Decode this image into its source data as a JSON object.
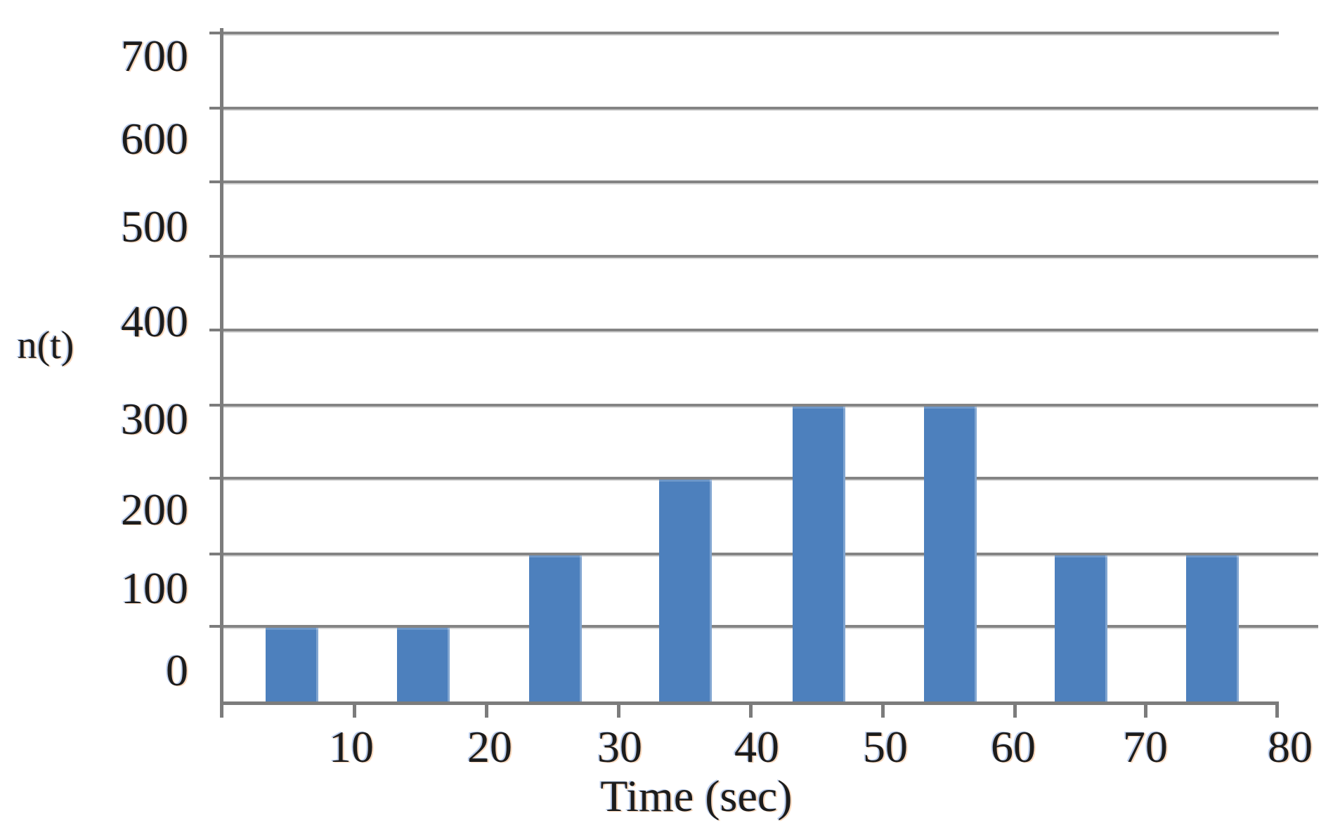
{
  "chart": {
    "y_axis_title": "n(t)",
    "x_axis_title": "Time (sec)"
  },
  "chart_data": {
    "type": "bar",
    "title": "",
    "xlabel": "Time (sec)",
    "ylabel": "n(t)",
    "categories": [
      "0-10",
      "10-20",
      "20-30",
      "30-40",
      "40-50",
      "50-60",
      "60-70",
      "70-80"
    ],
    "bin_centers": [
      5,
      15,
      25,
      35,
      45,
      55,
      65,
      75
    ],
    "values": [
      100,
      100,
      200,
      300,
      400,
      400,
      200,
      200
    ],
    "x_tick_labels": [
      "10",
      "20",
      "30",
      "40",
      "50",
      "60",
      "70",
      "80"
    ],
    "y_tick_labels": [
      "700",
      "600",
      "500",
      "400",
      "300",
      "200",
      "100",
      "0"
    ],
    "xlim": [
      0,
      80
    ],
    "ylim": [
      0,
      900
    ],
    "ylim_labeled": [
      0,
      700
    ],
    "grid": "horizontal gridlines every 100, no vertical gridlines",
    "legend": "none",
    "bar_color": "#4d80bd",
    "grid_color": "#848484",
    "text_color": "#1c1c1c",
    "background_color": "#ffffff"
  }
}
